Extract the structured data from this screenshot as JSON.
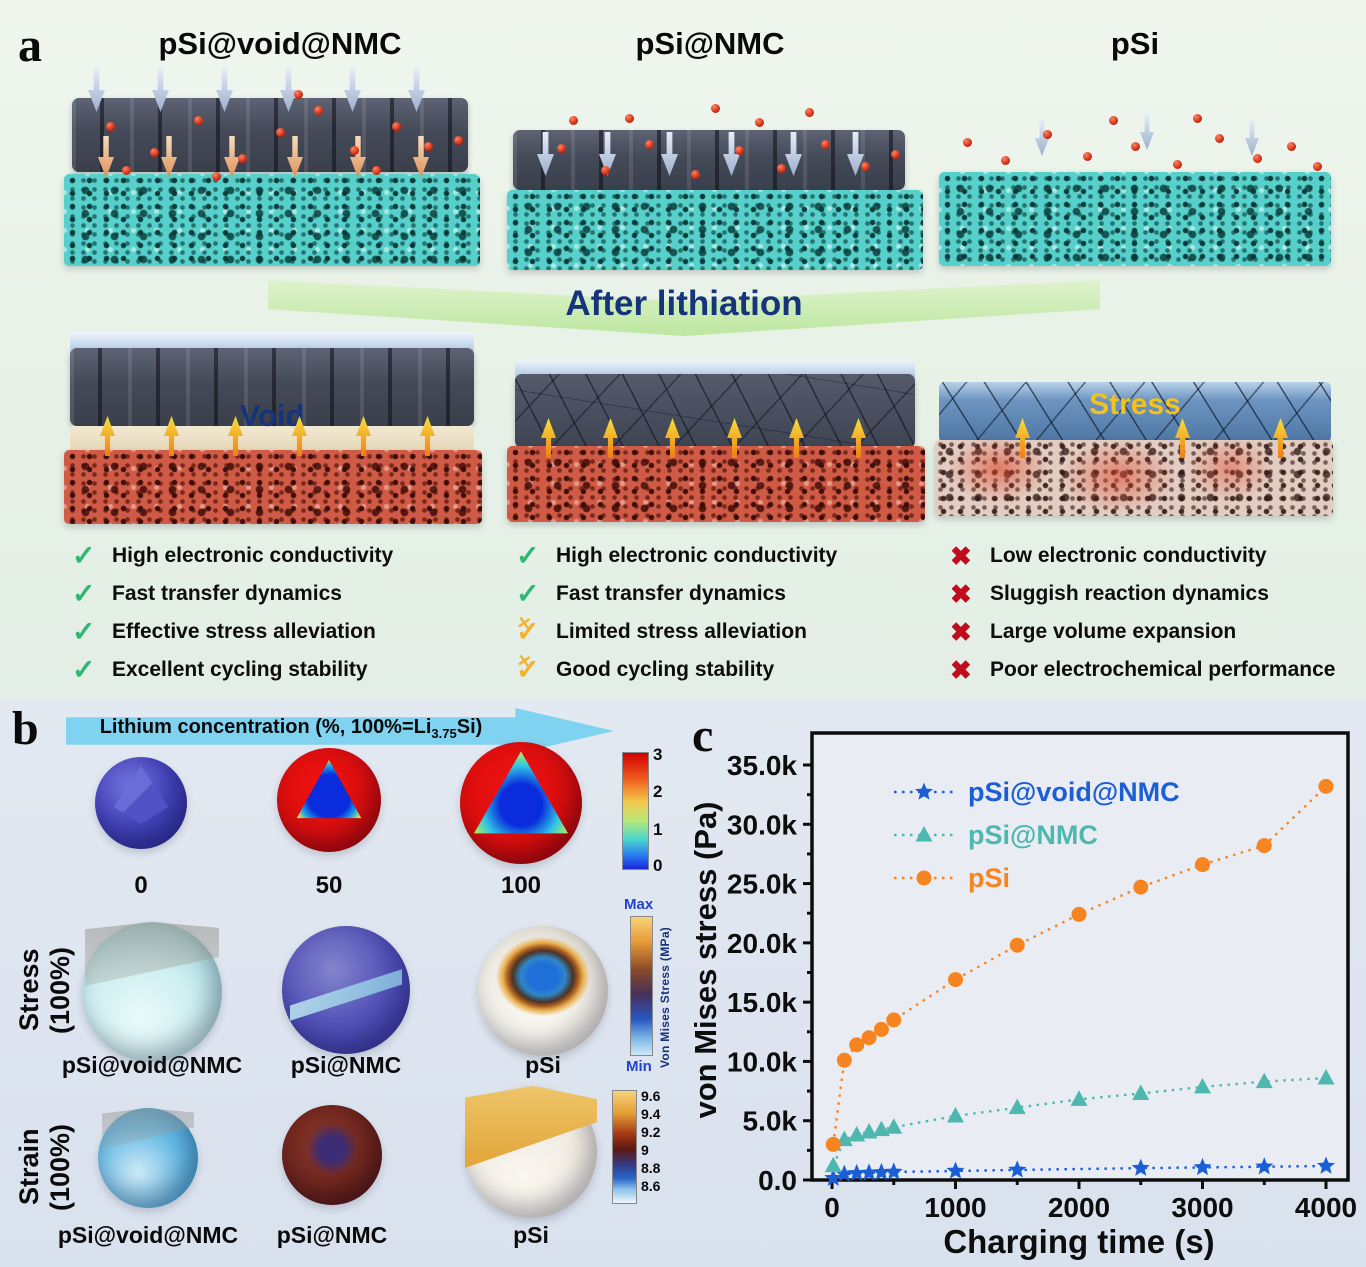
{
  "panel_a": {
    "label": "a",
    "banner": "After lithiation",
    "columns": [
      {
        "title": "pSi@void@NMC",
        "overlay": "Void",
        "checklist": [
          {
            "icon": "check",
            "text": "High electronic conductivity"
          },
          {
            "icon": "check",
            "text": "Fast transfer dynamics"
          },
          {
            "icon": "check",
            "text": "Effective stress alleviation"
          },
          {
            "icon": "check",
            "text": "Excellent cycling stability"
          }
        ]
      },
      {
        "title": "pSi@NMC",
        "overlay": "",
        "checklist": [
          {
            "icon": "check",
            "text": "High electronic conductivity"
          },
          {
            "icon": "check",
            "text": "Fast  transfer dynamics"
          },
          {
            "icon": "partial",
            "text": "Limited stress alleviation"
          },
          {
            "icon": "partial",
            "text": "Good cycling stability"
          }
        ]
      },
      {
        "title": "pSi",
        "overlay": "Stress",
        "checklist": [
          {
            "icon": "cross",
            "text": "Low electronic conductivity"
          },
          {
            "icon": "cross",
            "text": "Sluggish reaction dynamics"
          },
          {
            "icon": "cross",
            "text": "Large volume expansion"
          },
          {
            "icon": "cross",
            "text": "Poor electrochemical performance"
          }
        ]
      }
    ]
  },
  "panel_b": {
    "label": "b",
    "arrow_title": {
      "prefix": "Lithium concentration (%, 100%=Li",
      "sub": "3.75",
      "suffix": "Si)"
    },
    "concentration_row": {
      "labels": [
        "0",
        "50",
        "100"
      ],
      "colorbar_ticks": [
        "3",
        "2",
        "1",
        "0"
      ]
    },
    "stress_row": {
      "caption": "Stress (100%)",
      "labels": [
        "pSi@void@NMC",
        "pSi@NMC",
        "pSi"
      ],
      "colorbar": {
        "max": "Max",
        "min": "Min",
        "title": "Von Mises Stress (MPa)"
      }
    },
    "strain_row": {
      "caption": "Strain (100%)",
      "labels": [
        "pSi@void@NMC",
        "pSi@NMC",
        "pSi"
      ],
      "colorbar_ticks": [
        "9.6",
        "9.4",
        "9.2",
        "9",
        "8.8",
        "8.6"
      ]
    }
  },
  "panel_c": {
    "label": "c",
    "chart_data": {
      "type": "line",
      "title": "",
      "xlabel": "Charging time (s)",
      "ylabel": "von Mises stress (Pa)",
      "xlim": [
        0,
        4200
      ],
      "ylim": [
        0,
        37700
      ],
      "grid": false,
      "legend_position": "top-left-inside",
      "xticks": {
        "values": [
          0,
          1000,
          2000,
          3000,
          4000
        ],
        "labels": [
          "0",
          "1000",
          "2000",
          "3000",
          "4000"
        ]
      },
      "yticks": {
        "values": [
          0,
          5000,
          10000,
          15000,
          20000,
          25000,
          30000,
          35000
        ],
        "labels": [
          "0.0",
          "5.0k",
          "10.0k",
          "15.0k",
          "20.0k",
          "25.0k",
          "30.0k",
          "35.0k"
        ]
      },
      "series": [
        {
          "name": "pSi@void@NMC",
          "color": "#1c5ed6",
          "marker": "star",
          "line": "dotted",
          "x": [
            10,
            100,
            200,
            300,
            400,
            500,
            1000,
            1500,
            2500,
            3000,
            3500,
            4000
          ],
          "y": [
            150,
            500,
            560,
            600,
            640,
            680,
            760,
            850,
            1000,
            1060,
            1120,
            1180
          ]
        },
        {
          "name": "pSi@NMC",
          "color": "#4fb8ae",
          "marker": "triangle",
          "line": "dotted",
          "x": [
            10,
            100,
            200,
            300,
            400,
            500,
            1000,
            1500,
            2000,
            2500,
            3000,
            3500,
            4000
          ],
          "y": [
            1200,
            3400,
            3800,
            4050,
            4250,
            4450,
            5400,
            6100,
            6800,
            7300,
            7850,
            8300,
            8600
          ]
        },
        {
          "name": "pSi",
          "color": "#f68420",
          "marker": "circle",
          "line": "dotted",
          "x": [
            10,
            100,
            200,
            300,
            400,
            500,
            1000,
            1500,
            2000,
            2500,
            3000,
            3500,
            4000
          ],
          "y": [
            3000,
            10100,
            11400,
            12000,
            12700,
            13500,
            16900,
            19800,
            22400,
            24700,
            26600,
            28200,
            33200
          ]
        }
      ]
    }
  },
  "colors": {
    "check_green": "#2eb872",
    "partial_yellow": "#f3b229",
    "cross_red": "#c00d1e",
    "banner_text": "#16347c",
    "void_label": "#16347c",
    "stress_label": "#f2c21e",
    "panel_a_bg": "#e7f1e6",
    "panel_bc_bg": "#dde3ee"
  }
}
